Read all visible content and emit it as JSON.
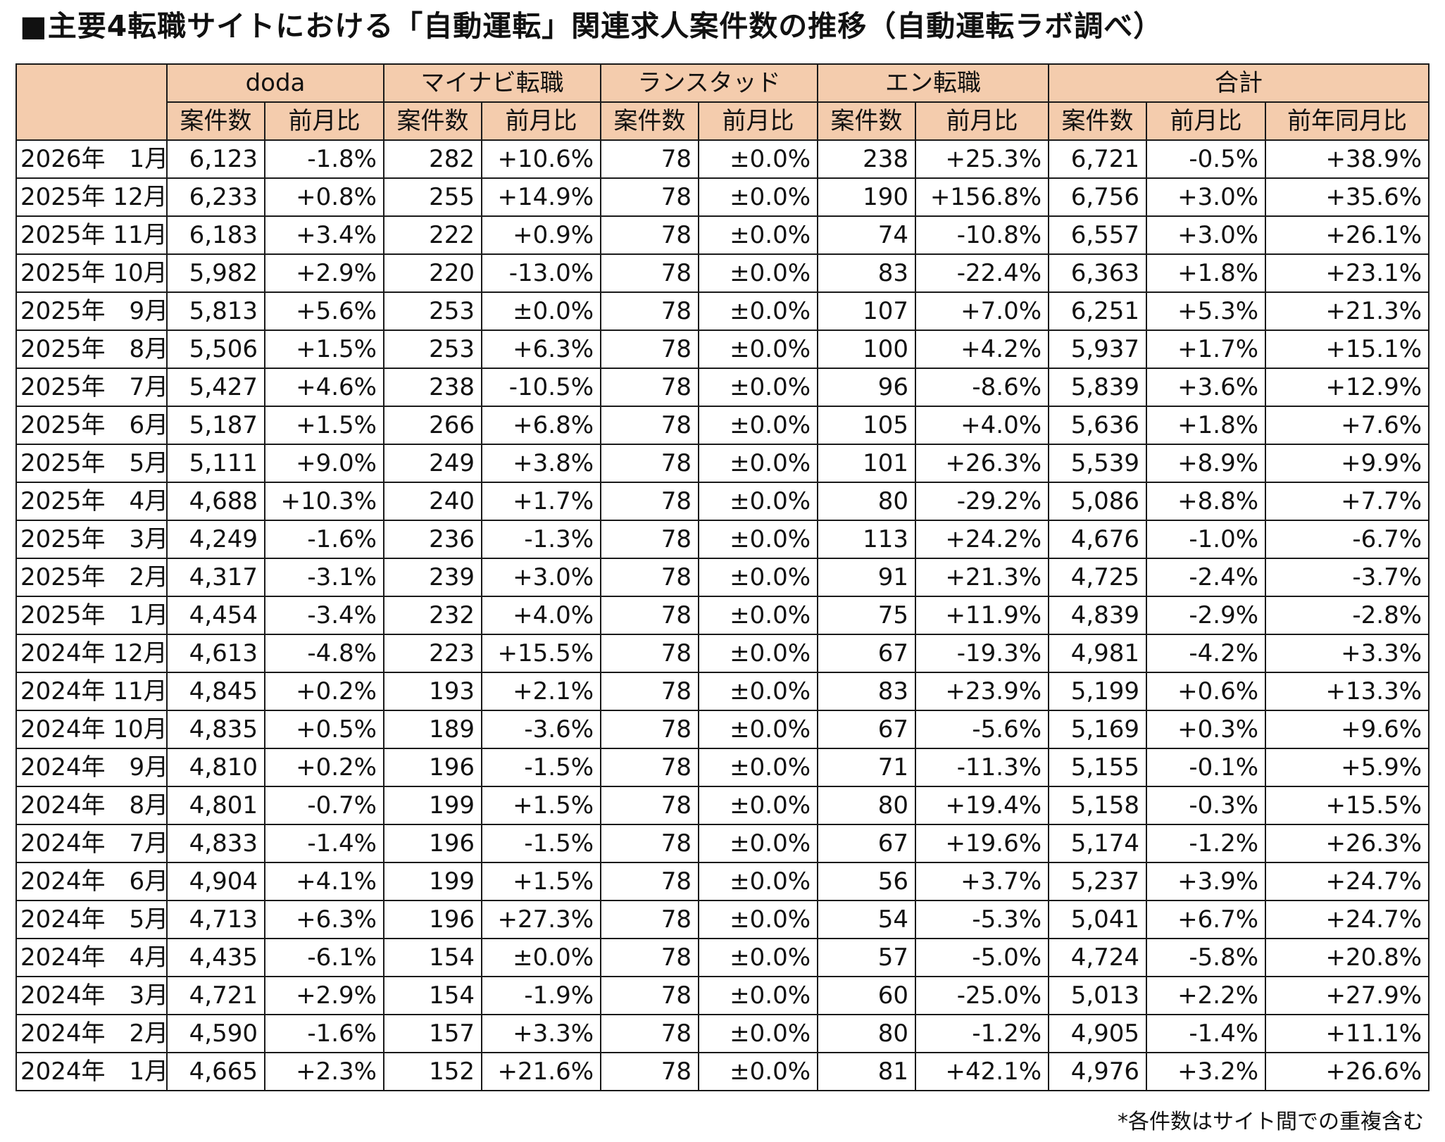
{
  "title": "■主要4転職サイトにおける「自動運転」関連求人案件数の推移（自動運転ラボ調べ）",
  "header": {
    "sites": [
      "doda",
      "マイナビ転職",
      "ランスタッド",
      "エン転職",
      "合計"
    ],
    "count_label": "案件数",
    "mom_label": "前月比",
    "yoy_label": "前年同月比"
  },
  "rows": [
    {
      "month": "2026年　1月",
      "doda": [
        "6,123",
        "-1.8%"
      ],
      "mynavi": [
        "282",
        "+10.6%"
      ],
      "randstad": [
        "78",
        "±0.0%"
      ],
      "en": [
        "238",
        "+25.3%"
      ],
      "total": [
        "6,721",
        "-0.5%",
        "+38.9%"
      ]
    },
    {
      "month": "2025年 12月",
      "doda": [
        "6,233",
        "+0.8%"
      ],
      "mynavi": [
        "255",
        "+14.9%"
      ],
      "randstad": [
        "78",
        "±0.0%"
      ],
      "en": [
        "190",
        "+156.8%"
      ],
      "total": [
        "6,756",
        "+3.0%",
        "+35.6%"
      ]
    },
    {
      "month": "2025年 11月",
      "doda": [
        "6,183",
        "+3.4%"
      ],
      "mynavi": [
        "222",
        "+0.9%"
      ],
      "randstad": [
        "78",
        "±0.0%"
      ],
      "en": [
        "74",
        "-10.8%"
      ],
      "total": [
        "6,557",
        "+3.0%",
        "+26.1%"
      ]
    },
    {
      "month": "2025年 10月",
      "doda": [
        "5,982",
        "+2.9%"
      ],
      "mynavi": [
        "220",
        "-13.0%"
      ],
      "randstad": [
        "78",
        "±0.0%"
      ],
      "en": [
        "83",
        "-22.4%"
      ],
      "total": [
        "6,363",
        "+1.8%",
        "+23.1%"
      ]
    },
    {
      "month": "2025年　9月",
      "doda": [
        "5,813",
        "+5.6%"
      ],
      "mynavi": [
        "253",
        "±0.0%"
      ],
      "randstad": [
        "78",
        "±0.0%"
      ],
      "en": [
        "107",
        "+7.0%"
      ],
      "total": [
        "6,251",
        "+5.3%",
        "+21.3%"
      ]
    },
    {
      "month": "2025年　8月",
      "doda": [
        "5,506",
        "+1.5%"
      ],
      "mynavi": [
        "253",
        "+6.3%"
      ],
      "randstad": [
        "78",
        "±0.0%"
      ],
      "en": [
        "100",
        "+4.2%"
      ],
      "total": [
        "5,937",
        "+1.7%",
        "+15.1%"
      ]
    },
    {
      "month": "2025年　7月",
      "doda": [
        "5,427",
        "+4.6%"
      ],
      "mynavi": [
        "238",
        "-10.5%"
      ],
      "randstad": [
        "78",
        "±0.0%"
      ],
      "en": [
        "96",
        "-8.6%"
      ],
      "total": [
        "5,839",
        "+3.6%",
        "+12.9%"
      ]
    },
    {
      "month": "2025年　6月",
      "doda": [
        "5,187",
        "+1.5%"
      ],
      "mynavi": [
        "266",
        "+6.8%"
      ],
      "randstad": [
        "78",
        "±0.0%"
      ],
      "en": [
        "105",
        "+4.0%"
      ],
      "total": [
        "5,636",
        "+1.8%",
        "+7.6%"
      ]
    },
    {
      "month": "2025年　5月",
      "doda": [
        "5,111",
        "+9.0%"
      ],
      "mynavi": [
        "249",
        "+3.8%"
      ],
      "randstad": [
        "78",
        "±0.0%"
      ],
      "en": [
        "101",
        "+26.3%"
      ],
      "total": [
        "5,539",
        "+8.9%",
        "+9.9%"
      ]
    },
    {
      "month": "2025年　4月",
      "doda": [
        "4,688",
        "+10.3%"
      ],
      "mynavi": [
        "240",
        "+1.7%"
      ],
      "randstad": [
        "78",
        "±0.0%"
      ],
      "en": [
        "80",
        "-29.2%"
      ],
      "total": [
        "5,086",
        "+8.8%",
        "+7.7%"
      ]
    },
    {
      "month": "2025年　3月",
      "doda": [
        "4,249",
        "-1.6%"
      ],
      "mynavi": [
        "236",
        "-1.3%"
      ],
      "randstad": [
        "78",
        "±0.0%"
      ],
      "en": [
        "113",
        "+24.2%"
      ],
      "total": [
        "4,676",
        "-1.0%",
        "-6.7%"
      ]
    },
    {
      "month": "2025年　2月",
      "doda": [
        "4,317",
        "-3.1%"
      ],
      "mynavi": [
        "239",
        "+3.0%"
      ],
      "randstad": [
        "78",
        "±0.0%"
      ],
      "en": [
        "91",
        "+21.3%"
      ],
      "total": [
        "4,725",
        "-2.4%",
        "-3.7%"
      ]
    },
    {
      "month": "2025年　1月",
      "doda": [
        "4,454",
        "-3.4%"
      ],
      "mynavi": [
        "232",
        "+4.0%"
      ],
      "randstad": [
        "78",
        "±0.0%"
      ],
      "en": [
        "75",
        "+11.9%"
      ],
      "total": [
        "4,839",
        "-2.9%",
        "-2.8%"
      ]
    },
    {
      "month": "2024年 12月",
      "doda": [
        "4,613",
        "-4.8%"
      ],
      "mynavi": [
        "223",
        "+15.5%"
      ],
      "randstad": [
        "78",
        "±0.0%"
      ],
      "en": [
        "67",
        "-19.3%"
      ],
      "total": [
        "4,981",
        "-4.2%",
        "+3.3%"
      ]
    },
    {
      "month": "2024年 11月",
      "doda": [
        "4,845",
        "+0.2%"
      ],
      "mynavi": [
        "193",
        "+2.1%"
      ],
      "randstad": [
        "78",
        "±0.0%"
      ],
      "en": [
        "83",
        "+23.9%"
      ],
      "total": [
        "5,199",
        "+0.6%",
        "+13.3%"
      ]
    },
    {
      "month": "2024年 10月",
      "doda": [
        "4,835",
        "+0.5%"
      ],
      "mynavi": [
        "189",
        "-3.6%"
      ],
      "randstad": [
        "78",
        "±0.0%"
      ],
      "en": [
        "67",
        "-5.6%"
      ],
      "total": [
        "5,169",
        "+0.3%",
        "+9.6%"
      ]
    },
    {
      "month": "2024年　9月",
      "doda": [
        "4,810",
        "+0.2%"
      ],
      "mynavi": [
        "196",
        "-1.5%"
      ],
      "randstad": [
        "78",
        "±0.0%"
      ],
      "en": [
        "71",
        "-11.3%"
      ],
      "total": [
        "5,155",
        "-0.1%",
        "+5.9%"
      ]
    },
    {
      "month": "2024年　8月",
      "doda": [
        "4,801",
        "-0.7%"
      ],
      "mynavi": [
        "199",
        "+1.5%"
      ],
      "randstad": [
        "78",
        "±0.0%"
      ],
      "en": [
        "80",
        "+19.4%"
      ],
      "total": [
        "5,158",
        "-0.3%",
        "+15.5%"
      ]
    },
    {
      "month": "2024年　7月",
      "doda": [
        "4,833",
        "-1.4%"
      ],
      "mynavi": [
        "196",
        "-1.5%"
      ],
      "randstad": [
        "78",
        "±0.0%"
      ],
      "en": [
        "67",
        "+19.6%"
      ],
      "total": [
        "5,174",
        "-1.2%",
        "+26.3%"
      ]
    },
    {
      "month": "2024年　6月",
      "doda": [
        "4,904",
        "+4.1%"
      ],
      "mynavi": [
        "199",
        "+1.5%"
      ],
      "randstad": [
        "78",
        "±0.0%"
      ],
      "en": [
        "56",
        "+3.7%"
      ],
      "total": [
        "5,237",
        "+3.9%",
        "+24.7%"
      ]
    },
    {
      "month": "2024年　5月",
      "doda": [
        "4,713",
        "+6.3%"
      ],
      "mynavi": [
        "196",
        "+27.3%"
      ],
      "randstad": [
        "78",
        "±0.0%"
      ],
      "en": [
        "54",
        "-5.3%"
      ],
      "total": [
        "5,041",
        "+6.7%",
        "+24.7%"
      ]
    },
    {
      "month": "2024年　4月",
      "doda": [
        "4,435",
        "-6.1%"
      ],
      "mynavi": [
        "154",
        "±0.0%"
      ],
      "randstad": [
        "78",
        "±0.0%"
      ],
      "en": [
        "57",
        "-5.0%"
      ],
      "total": [
        "4,724",
        "-5.8%",
        "+20.8%"
      ]
    },
    {
      "month": "2024年　3月",
      "doda": [
        "4,721",
        "+2.9%"
      ],
      "mynavi": [
        "154",
        "-1.9%"
      ],
      "randstad": [
        "78",
        "±0.0%"
      ],
      "en": [
        "60",
        "-25.0%"
      ],
      "total": [
        "5,013",
        "+2.2%",
        "+27.9%"
      ]
    },
    {
      "month": "2024年　2月",
      "doda": [
        "4,590",
        "-1.6%"
      ],
      "mynavi": [
        "157",
        "+3.3%"
      ],
      "randstad": [
        "78",
        "±0.0%"
      ],
      "en": [
        "80",
        "-1.2%"
      ],
      "total": [
        "4,905",
        "-1.4%",
        "+11.1%"
      ]
    },
    {
      "month": "2024年　1月",
      "doda": [
        "4,665",
        "+2.3%"
      ],
      "mynavi": [
        "152",
        "+21.6%"
      ],
      "randstad": [
        "78",
        "±0.0%"
      ],
      "en": [
        "81",
        "+42.1%"
      ],
      "total": [
        "4,976",
        "+3.2%",
        "+26.6%"
      ]
    }
  ],
  "note": "*各件数はサイト間での重複含む",
  "colors": {
    "header_bg": "#f4ccad",
    "border": "#1a1a1a"
  }
}
